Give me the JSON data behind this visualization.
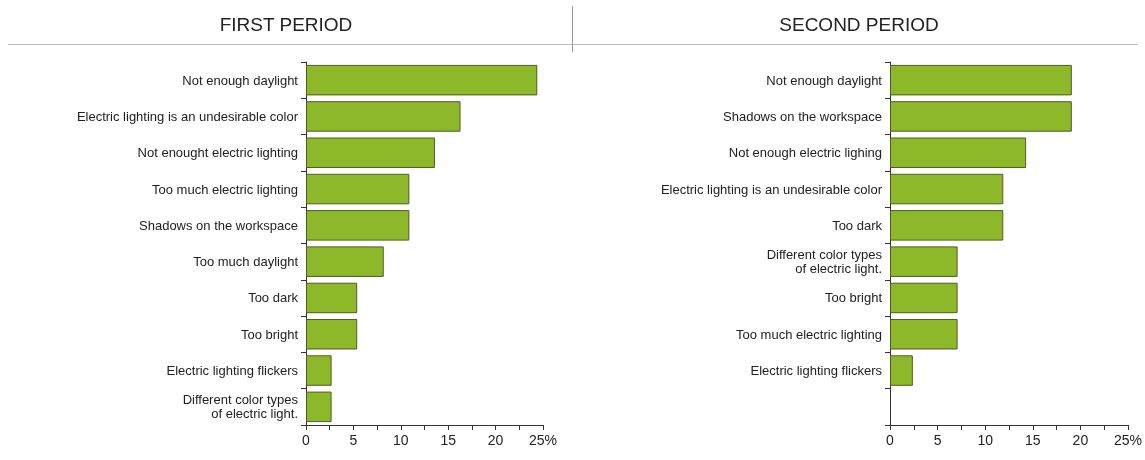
{
  "chart_data": [
    {
      "type": "bar",
      "orientation": "horizontal",
      "title": "FIRST PERIOD",
      "categories": [
        "Not enough daylight",
        "Electric lighting is an undesirable color",
        "Not enought electric lighting",
        "Too much electric lighting",
        "Shadows on the workspace",
        "Too much daylight",
        "Too dark",
        "Too bright",
        "Electric lighting flickers",
        "Different color types\nof electric light."
      ],
      "values": [
        24.4,
        16.3,
        13.6,
        10.9,
        10.9,
        8.2,
        5.4,
        5.4,
        2.7,
        2.7
      ],
      "color": "#8cb82a",
      "xlim": [
        0,
        25
      ],
      "xticks": [
        0,
        {
          "value": 2.5,
          "label": null
        },
        5,
        {
          "value": 7.5,
          "label": null
        },
        10,
        {
          "value": 12.5,
          "label": null
        },
        15,
        {
          "value": 17.5,
          "label": null
        },
        20,
        {
          "value": 22.5,
          "label": null
        },
        {
          "value": 25,
          "label": "25%"
        }
      ],
      "grid": false
    },
    {
      "type": "bar",
      "orientation": "horizontal",
      "title": "SECOND PERIOD",
      "categories": [
        "Not enough daylight",
        "Shadows on the workspace",
        "Not enough electric lighing",
        "Electric lighting is an undesirable color",
        "Too dark",
        "Different color types\nof electric light.",
        "Too bright",
        "Too much electric lighting",
        "Electric lighting flickers",
        null
      ],
      "values": [
        19.1,
        19.1,
        14.3,
        11.9,
        11.9,
        7.1,
        7.1,
        7.1,
        2.4,
        null
      ],
      "color": "#8cb82a",
      "xlim": [
        0,
        25
      ],
      "xticks": [
        0,
        {
          "value": 2.5,
          "label": null
        },
        5,
        {
          "value": 7.5,
          "label": null
        },
        10,
        {
          "value": 12.5,
          "label": null
        },
        15,
        {
          "value": 17.5,
          "label": null
        },
        20,
        {
          "value": 22.5,
          "label": null
        },
        {
          "value": 25,
          "label": "25%"
        }
      ],
      "grid": false
    }
  ]
}
